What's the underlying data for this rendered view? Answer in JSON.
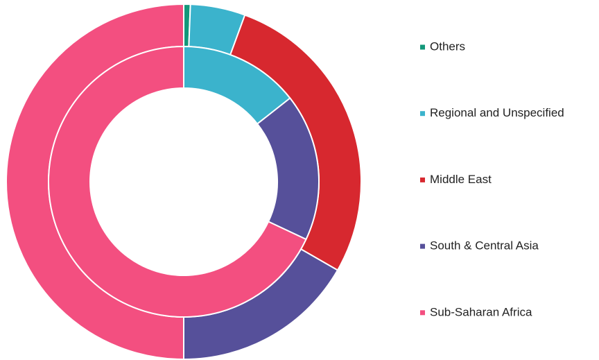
{
  "chart_data": {
    "type": "donut",
    "categories": [
      "Others",
      "Regional and Unspecified",
      "Middle East",
      "South & Central Asia",
      "Sub-Saharan Africa"
    ],
    "colors": [
      "#13987a",
      "#3bb3cc",
      "#d7282f",
      "#56509a",
      "#f34f80"
    ],
    "series": [
      {
        "values": [
          0.6,
          5,
          27.7,
          16.7,
          50
        ]
      },
      {
        "values": [
          0,
          14.4,
          0,
          17.6,
          68
        ]
      }
    ],
    "legend": "right"
  }
}
